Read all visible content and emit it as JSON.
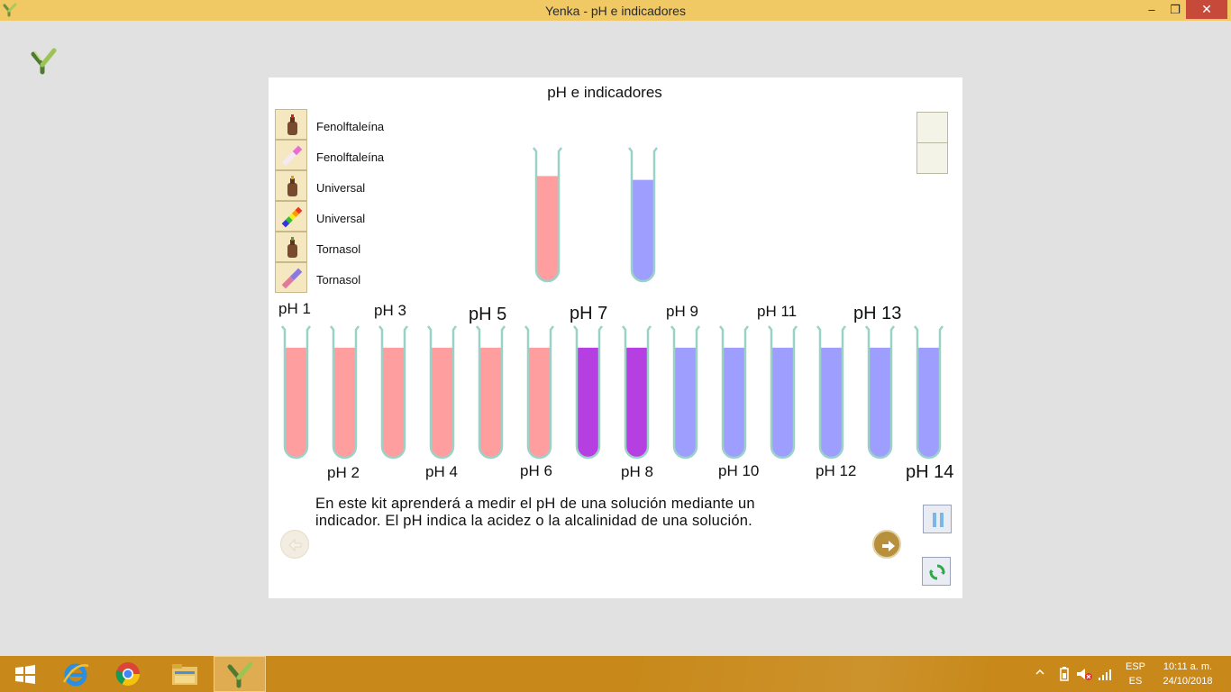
{
  "window": {
    "title": "Yenka - pH e indicadores",
    "controls": {
      "minimize": "‒",
      "maximize": "❐",
      "close": "✕"
    }
  },
  "panel": {
    "title": "pH e indicadores",
    "indicators": [
      {
        "label": "Fenolftaleína",
        "icon": "dropper-bottle-icon"
      },
      {
        "label": "Fenolftaleína",
        "icon": "test-strip-pink-icon"
      },
      {
        "label": "Universal",
        "icon": "dropper-bottle-icon"
      },
      {
        "label": "Universal",
        "icon": "test-strip-rainbow-icon"
      },
      {
        "label": "Tornasol",
        "icon": "dropper-bottle-icon"
      },
      {
        "label": "Tornasol",
        "icon": "test-strip-purple-icon"
      }
    ],
    "sample_tubes": [
      {
        "color": "#ff9e9e",
        "level": 0.81
      },
      {
        "color": "#9e9eff",
        "level": 0.78
      }
    ],
    "ph_tubes": [
      {
        "label": "pH 1",
        "color": "#ff9e9e",
        "label_pos": "top",
        "size": "small"
      },
      {
        "label": "pH 2",
        "color": "#ff9e9e",
        "label_pos": "bottom",
        "size": "small"
      },
      {
        "label": "pH 3",
        "color": "#ff9e9e",
        "label_pos": "top",
        "size": "small"
      },
      {
        "label": "pH 4",
        "color": "#ff9e9e",
        "label_pos": "bottom",
        "size": "small"
      },
      {
        "label": "pH 5",
        "color": "#ff9e9e",
        "label_pos": "top",
        "size": "big"
      },
      {
        "label": "pH 6",
        "color": "#ff9e9e",
        "label_pos": "bottom",
        "size": "small"
      },
      {
        "label": "pH 7",
        "color": "#b53fe0",
        "label_pos": "top",
        "size": "big"
      },
      {
        "label": "pH 8",
        "color": "#b53fe0",
        "label_pos": "bottom",
        "size": "small"
      },
      {
        "label": "pH 9",
        "color": "#9e9eff",
        "label_pos": "top",
        "size": "small"
      },
      {
        "label": "pH 10",
        "color": "#9e9eff",
        "label_pos": "bottom",
        "size": "small"
      },
      {
        "label": "pH 11",
        "color": "#9e9eff",
        "label_pos": "top",
        "size": "small"
      },
      {
        "label": "pH 12",
        "color": "#9e9eff",
        "label_pos": "bottom",
        "size": "small"
      },
      {
        "label": "pH 13",
        "color": "#9e9eff",
        "label_pos": "top",
        "size": "big"
      },
      {
        "label": "pH 14",
        "color": "#9e9eff",
        "label_pos": "bottom",
        "size": "big"
      }
    ],
    "info_text": "En este kit aprenderá a medir el pH de una solución mediante un indicador. El pH indica la acidez o la alcalinidad de una solución."
  },
  "taskbar": {
    "apps": [
      {
        "name": "taskbar-windows-start",
        "icon": "windows-logo-icon"
      },
      {
        "name": "taskbar-internet-explorer",
        "icon": "internet-explorer-icon"
      },
      {
        "name": "taskbar-chrome",
        "icon": "chrome-icon"
      },
      {
        "name": "taskbar-file-explorer",
        "icon": "folder-icon"
      },
      {
        "name": "taskbar-yenka",
        "icon": "yenka-icon",
        "active": true
      }
    ],
    "tray": {
      "lang_top": "ESP",
      "lang_bottom": "ES",
      "time": "10:11 a. m.",
      "date": "24/10/2018"
    }
  },
  "colors": {
    "titlebar": "#f0c864",
    "taskbar": "#c8891a",
    "acid": "#ff9e9e",
    "neutral": "#b53fe0",
    "base": "#9e9eff",
    "tube_glass": "#9bd2c8"
  }
}
